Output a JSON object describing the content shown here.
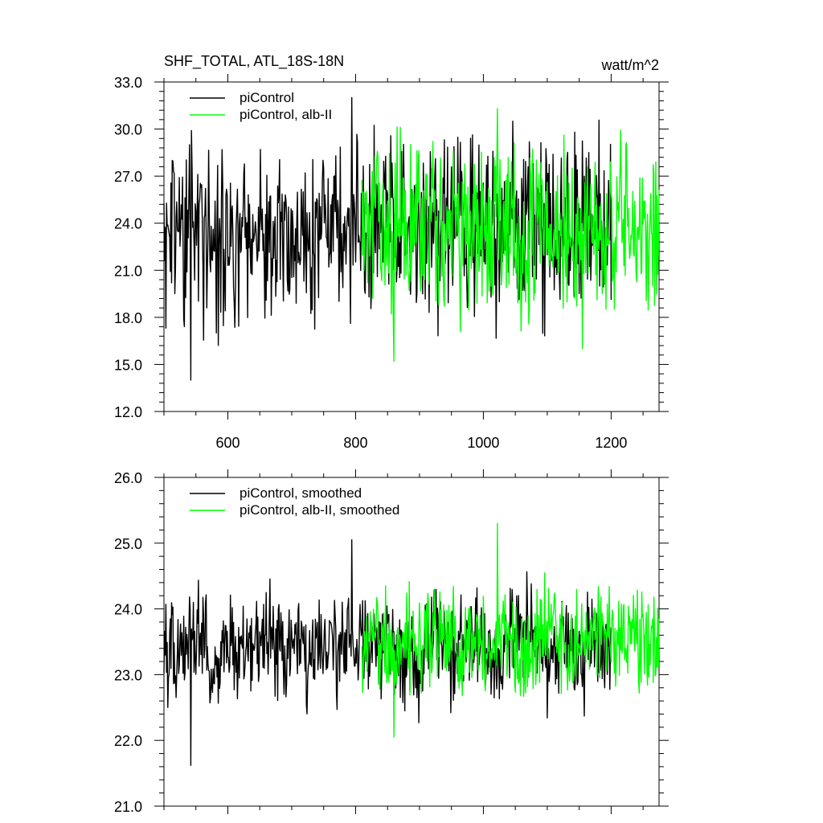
{
  "chart_data": [
    {
      "type": "line",
      "title": "SHF_TOTAL, ATL_18S-18N",
      "units": "watt/m^2",
      "xlim": [
        500,
        1275
      ],
      "ylim": [
        12.0,
        33.0
      ],
      "x_ticks": [
        600,
        800,
        1000,
        1200
      ],
      "x_tick_labels": [
        "600",
        "800",
        "1000",
        "1200"
      ],
      "y_ticks": [
        12,
        15,
        18,
        21,
        24,
        27,
        30,
        33
      ],
      "y_tick_labels": [
        "12.0",
        "15.0",
        "18.0",
        "21.0",
        "24.0",
        "27.0",
        "30.0",
        "33.0"
      ],
      "legend": "top-left",
      "grid": false,
      "series": [
        {
          "name": "piControl",
          "color": "#000000",
          "x_range": [
            500,
            1200
          ],
          "x": [
            500,
            525,
            550,
            575,
            600,
            625,
            650,
            675,
            700,
            725,
            750,
            775,
            800,
            825,
            850,
            875,
            900,
            925,
            950,
            975,
            1000,
            1025,
            1050,
            1075,
            1100,
            1125,
            1150,
            1175,
            1200
          ],
          "values": [
            23.6,
            22.8,
            24.6,
            22.4,
            23.9,
            23.1,
            24.3,
            23.2,
            23.7,
            23.0,
            24.1,
            23.4,
            22.9,
            23.8,
            23.3,
            24.4,
            22.7,
            23.6,
            24.0,
            23.1,
            23.9,
            22.8,
            24.2,
            23.5,
            23.0,
            24.1,
            23.2,
            23.8,
            23.4
          ],
          "max": 32.0,
          "min": 14.0
        },
        {
          "name": "piControl, alb-II",
          "color": "#00ff00",
          "x_range": [
            810,
            1275
          ],
          "x": [
            810,
            835,
            860,
            885,
            910,
            935,
            960,
            985,
            1010,
            1035,
            1060,
            1085,
            1110,
            1135,
            1160,
            1185,
            1210,
            1235,
            1260,
            1275
          ],
          "values": [
            23.5,
            24.1,
            22.9,
            23.8,
            23.2,
            24.3,
            23.0,
            23.9,
            23.4,
            24.0,
            22.8,
            23.7,
            24.2,
            23.1,
            23.6,
            24.0,
            23.3,
            23.8,
            23.5,
            23.6
          ],
          "max": 31.3,
          "min": 15.2
        }
      ]
    },
    {
      "type": "line",
      "xlim": [
        500,
        1275
      ],
      "ylim": [
        21.0,
        26.0
      ],
      "x_ticks": [
        600,
        800,
        1000,
        1200
      ],
      "x_tick_labels": [],
      "y_ticks": [
        21,
        22,
        23,
        24,
        25,
        26
      ],
      "y_tick_labels": [
        "21.0",
        "22.0",
        "23.0",
        "24.0",
        "25.0",
        "26.0"
      ],
      "legend": "top-left",
      "grid": false,
      "series": [
        {
          "name": "piControl, smoothed",
          "color": "#000000",
          "x_range": [
            500,
            1200
          ],
          "x": [
            500,
            525,
            550,
            575,
            600,
            625,
            650,
            675,
            700,
            725,
            750,
            775,
            800,
            825,
            850,
            875,
            900,
            925,
            950,
            975,
            1000,
            1025,
            1050,
            1075,
            1100,
            1125,
            1150,
            1175,
            1200
          ],
          "values": [
            23.4,
            23.2,
            23.8,
            23.1,
            23.5,
            23.4,
            23.7,
            23.3,
            23.5,
            23.2,
            23.6,
            23.4,
            23.5,
            23.3,
            23.6,
            23.4,
            23.2,
            23.7,
            23.3,
            23.5,
            23.4,
            23.2,
            23.8,
            23.4,
            23.3,
            23.6,
            23.2,
            23.5,
            23.3
          ],
          "max": 25.05,
          "min": 21.62
        },
        {
          "name": "piControl, alb-II, smoothed",
          "color": "#00ff00",
          "x_range": [
            810,
            1275
          ],
          "x": [
            810,
            835,
            860,
            885,
            910,
            935,
            960,
            985,
            1010,
            1035,
            1060,
            1085,
            1110,
            1135,
            1160,
            1185,
            1210,
            1235,
            1260,
            1275
          ],
          "values": [
            23.4,
            23.7,
            23.2,
            23.6,
            23.5,
            23.8,
            23.3,
            23.6,
            23.4,
            23.7,
            23.2,
            23.5,
            23.8,
            23.3,
            23.6,
            23.7,
            23.4,
            23.6,
            23.5,
            23.4
          ],
          "max": 25.3,
          "min": 22.05
        }
      ]
    }
  ]
}
